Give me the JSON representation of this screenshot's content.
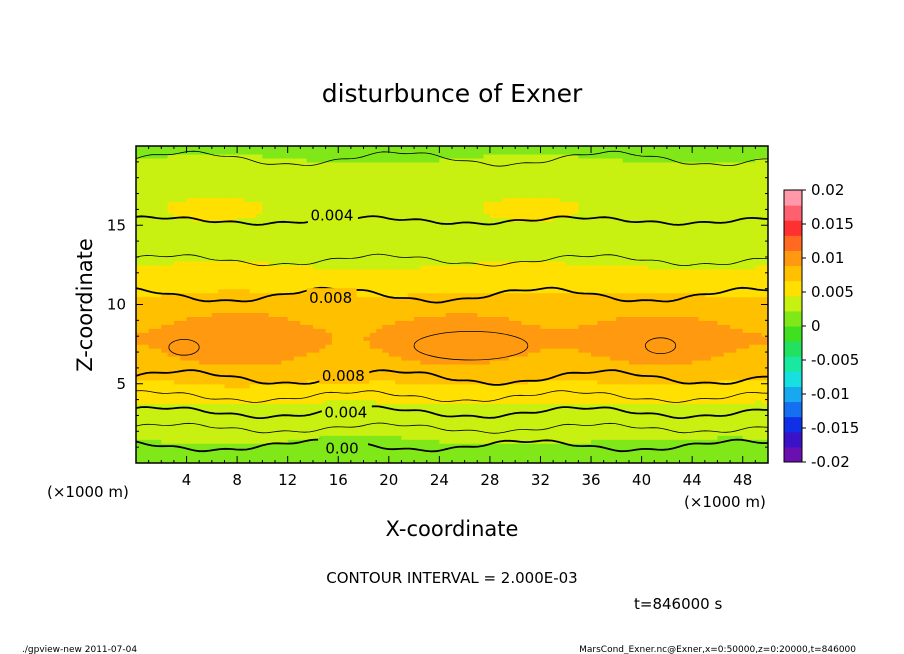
{
  "chart_data": {
    "type": "heatmap",
    "title": "disturbunce of Exner",
    "xlabel": "X-coordinate",
    "ylabel": "Z-coordinate",
    "x_unit": "(×1000 m)",
    "x_ticks": [
      4,
      8,
      12,
      16,
      20,
      24,
      28,
      32,
      36,
      40,
      44,
      48
    ],
    "y_ticks": [
      5,
      10,
      15
    ],
    "xlim": [
      0,
      50
    ],
    "ylim": [
      0,
      20
    ],
    "colorbar": {
      "ticks": [
        "0.02",
        "0.015",
        "0.01",
        "0.005",
        "0",
        "-0.005",
        "-0.01",
        "-0.015",
        "-0.02"
      ],
      "range": [
        -0.02,
        0.02
      ],
      "colors": [
        "#6a0fb0",
        "#3a12c8",
        "#1030e8",
        "#1470f0",
        "#18a8f0",
        "#18e0e0",
        "#18e8a0",
        "#22e060",
        "#40e020",
        "#80e818",
        "#c8f010",
        "#ffe000",
        "#ffc000",
        "#ff9a10",
        "#ff6a20",
        "#ff3030",
        "#ff6070",
        "#ff98a8"
      ]
    },
    "contour_interval_text": "CONTOUR INTERVAL = 2.000E-03",
    "contour_labels": [
      {
        "text": "0.004",
        "x": 15.5,
        "z": 15.6
      },
      {
        "text": "0.008",
        "x": 15.4,
        "z": 10.4
      },
      {
        "text": "0.008",
        "x": 16.4,
        "z": 5.5
      },
      {
        "text": "0.004",
        "x": 16.6,
        "z": 3.2
      },
      {
        "text": "0.00",
        "x": 16.3,
        "z": 0.9
      }
    ],
    "maxima_regions": [
      {
        "x": 3.8,
        "z": 7.3
      },
      {
        "x": 26.5,
        "z": 7.4
      },
      {
        "x": 41.5,
        "z": 7.4
      }
    ]
  },
  "time_label": "t=846000 s",
  "footer": {
    "left": "./gpview-new   2011-07-04",
    "right": "MarsCond_Exner.nc@Exner,x=0:50000,z=0:20000,t=846000"
  }
}
